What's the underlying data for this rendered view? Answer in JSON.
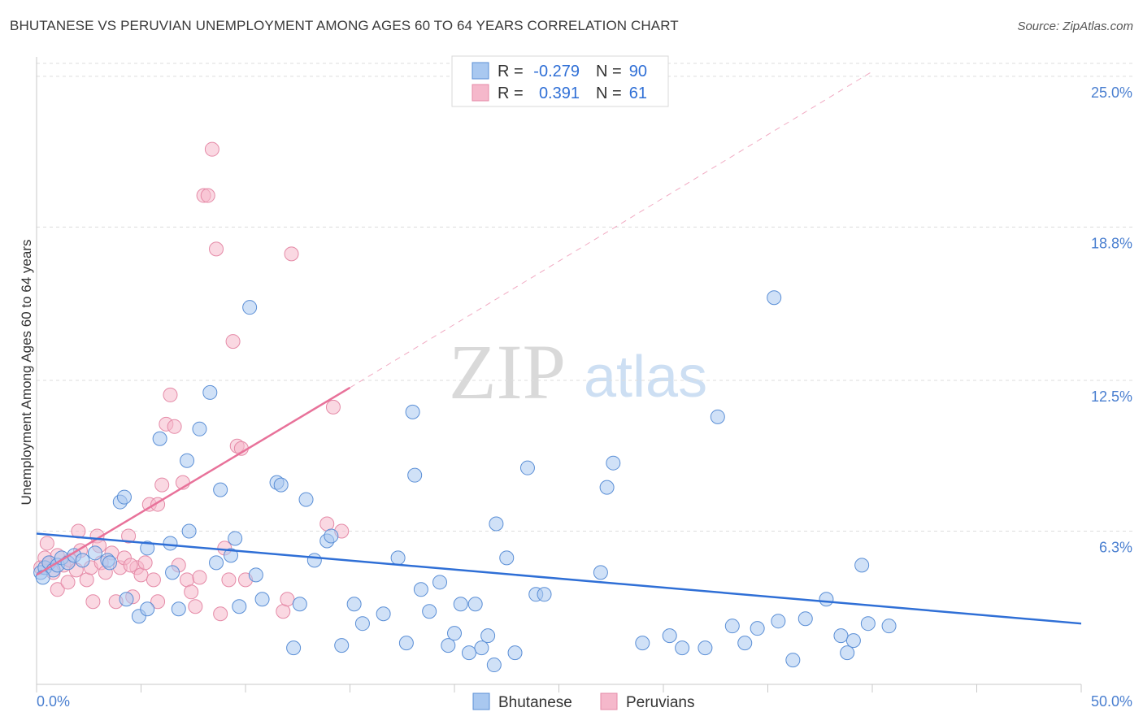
{
  "title": "BHUTANESE VS PERUVIAN UNEMPLOYMENT AMONG AGES 60 TO 64 YEARS CORRELATION CHART",
  "source": "Source: ZipAtlas.com",
  "watermark": {
    "zip": "ZIP",
    "atlas": "atlas"
  },
  "colors": {
    "bhutanese_fill": "#a9c8f0",
    "bhutanese_stroke": "#5b8fd6",
    "bhutanese_line": "#2f6fd6",
    "peruvian_fill": "#f5b8cb",
    "peruvian_stroke": "#e58aa7",
    "peruvian_line": "#e8729a",
    "grid": "#dddddd",
    "tick_label": "#4a7fd0"
  },
  "legend": {
    "bhutanese": {
      "r_label": "R =",
      "r_value": "-0.279",
      "n_label": "N =",
      "n_value": "90"
    },
    "peruvian": {
      "r_label": "R =",
      "r_value": "0.391",
      "n_label": "N =",
      "n_value": "61"
    }
  },
  "bottom_legend": [
    "Bhutanese",
    "Peruvians"
  ],
  "chart_data": {
    "type": "scatter",
    "title": "BHUTANESE VS PERUVIAN UNEMPLOYMENT AMONG AGES 60 TO 64 YEARS CORRELATION CHART",
    "xlabel": "",
    "ylabel": "Unemployment Among Ages 60 to 64 years",
    "xlim": [
      0,
      50
    ],
    "ylim": [
      0,
      26.2
    ],
    "x_tick_labels": [
      "0.0%",
      "50.0%"
    ],
    "y_ticks": [
      6.3,
      12.5,
      18.8,
      25.0
    ],
    "y_tick_labels": [
      "6.3%",
      "12.5%",
      "18.8%",
      "25.0%"
    ],
    "grid": true,
    "legend_position": "top-center",
    "series": [
      {
        "name": "Bhutanese",
        "r": -0.279,
        "n": 90,
        "trend": {
          "x": [
            0,
            50
          ],
          "y": [
            6.2,
            2.5
          ],
          "style": "solid"
        },
        "points": [
          [
            0.2,
            4.6
          ],
          [
            0.4,
            4.8
          ],
          [
            0.6,
            5.0
          ],
          [
            0.8,
            4.7
          ],
          [
            1.0,
            4.9
          ],
          [
            1.2,
            5.2
          ],
          [
            1.5,
            5.0
          ],
          [
            1.8,
            5.3
          ],
          [
            2.2,
            5.1
          ],
          [
            2.8,
            5.4
          ],
          [
            3.4,
            5.1
          ],
          [
            3.5,
            5.0
          ],
          [
            4.0,
            7.5
          ],
          [
            4.2,
            7.7
          ],
          [
            4.3,
            3.5
          ],
          [
            4.9,
            2.8
          ],
          [
            5.3,
            5.6
          ],
          [
            5.3,
            3.1
          ],
          [
            5.9,
            10.1
          ],
          [
            6.4,
            5.8
          ],
          [
            6.5,
            4.6
          ],
          [
            6.8,
            3.1
          ],
          [
            7.2,
            9.2
          ],
          [
            7.3,
            6.3
          ],
          [
            7.8,
            10.5
          ],
          [
            8.3,
            12.0
          ],
          [
            8.6,
            5.0
          ],
          [
            8.8,
            8.0
          ],
          [
            9.3,
            5.3
          ],
          [
            9.5,
            6.0
          ],
          [
            9.7,
            3.2
          ],
          [
            10.2,
            15.5
          ],
          [
            10.5,
            4.5
          ],
          [
            10.8,
            3.5
          ],
          [
            11.5,
            8.3
          ],
          [
            11.7,
            8.2
          ],
          [
            12.3,
            1.5
          ],
          [
            12.6,
            3.3
          ],
          [
            12.9,
            7.6
          ],
          [
            13.3,
            5.1
          ],
          [
            13.9,
            5.9
          ],
          [
            14.1,
            6.1
          ],
          [
            14.6,
            1.6
          ],
          [
            15.2,
            3.3
          ],
          [
            15.6,
            2.5
          ],
          [
            16.6,
            2.9
          ],
          [
            17.3,
            5.2
          ],
          [
            17.7,
            1.7
          ],
          [
            18.0,
            11.2
          ],
          [
            18.1,
            8.6
          ],
          [
            18.4,
            3.9
          ],
          [
            18.8,
            3.0
          ],
          [
            19.3,
            4.2
          ],
          [
            19.7,
            1.6
          ],
          [
            20.0,
            2.1
          ],
          [
            20.3,
            3.3
          ],
          [
            20.7,
            1.3
          ],
          [
            21.0,
            3.3
          ],
          [
            21.3,
            1.5
          ],
          [
            21.6,
            2.0
          ],
          [
            21.9,
            0.8
          ],
          [
            22.0,
            6.6
          ],
          [
            22.5,
            5.2
          ],
          [
            22.9,
            1.3
          ],
          [
            23.5,
            8.9
          ],
          [
            23.9,
            3.7
          ],
          [
            24.3,
            3.7
          ],
          [
            27.0,
            4.6
          ],
          [
            27.3,
            8.1
          ],
          [
            27.6,
            9.1
          ],
          [
            29.0,
            1.7
          ],
          [
            30.3,
            2.0
          ],
          [
            30.9,
            1.5
          ],
          [
            32.0,
            1.5
          ],
          [
            32.6,
            11.0
          ],
          [
            33.3,
            2.4
          ],
          [
            33.9,
            1.7
          ],
          [
            34.5,
            2.3
          ],
          [
            35.3,
            15.9
          ],
          [
            35.5,
            2.6
          ],
          [
            36.2,
            1.0
          ],
          [
            36.8,
            2.7
          ],
          [
            37.8,
            3.5
          ],
          [
            38.5,
            2.0
          ],
          [
            38.8,
            1.3
          ],
          [
            39.1,
            1.8
          ],
          [
            39.5,
            4.9
          ],
          [
            39.8,
            2.5
          ],
          [
            40.8,
            2.4
          ],
          [
            0.3,
            4.4
          ]
        ]
      },
      {
        "name": "Peruvians",
        "r": 0.391,
        "n": 61,
        "trend": {
          "x": [
            0,
            15
          ],
          "y": [
            4.5,
            12.2
          ],
          "style": "solid",
          "extended": {
            "x": [
              15,
              40
            ],
            "y": [
              12.2,
              25.2
            ],
            "style": "dashed"
          }
        },
        "points": [
          [
            0.2,
            4.8
          ],
          [
            0.4,
            5.2
          ],
          [
            0.6,
            5.0
          ],
          [
            0.8,
            4.6
          ],
          [
            1.0,
            5.3
          ],
          [
            1.3,
            4.9
          ],
          [
            1.6,
            5.1
          ],
          [
            1.9,
            4.7
          ],
          [
            2.1,
            5.5
          ],
          [
            2.4,
            4.3
          ],
          [
            2.6,
            4.8
          ],
          [
            2.9,
            6.1
          ],
          [
            3.1,
            5.0
          ],
          [
            3.3,
            4.6
          ],
          [
            3.6,
            5.4
          ],
          [
            3.8,
            3.4
          ],
          [
            4.0,
            4.8
          ],
          [
            4.2,
            5.2
          ],
          [
            4.4,
            6.1
          ],
          [
            4.6,
            3.6
          ],
          [
            4.8,
            4.8
          ],
          [
            5.0,
            4.5
          ],
          [
            5.2,
            5.0
          ],
          [
            5.4,
            7.4
          ],
          [
            5.6,
            4.3
          ],
          [
            5.8,
            3.4
          ],
          [
            6.0,
            8.2
          ],
          [
            6.2,
            10.7
          ],
          [
            6.4,
            11.9
          ],
          [
            6.6,
            10.6
          ],
          [
            6.8,
            4.9
          ],
          [
            7.0,
            8.3
          ],
          [
            7.2,
            4.3
          ],
          [
            7.4,
            3.8
          ],
          [
            7.6,
            3.2
          ],
          [
            7.8,
            4.4
          ],
          [
            8.0,
            20.1
          ],
          [
            8.2,
            20.1
          ],
          [
            8.4,
            22.0
          ],
          [
            8.6,
            17.9
          ],
          [
            8.8,
            2.9
          ],
          [
            9.0,
            5.6
          ],
          [
            9.2,
            4.3
          ],
          [
            9.4,
            14.1
          ],
          [
            9.6,
            9.8
          ],
          [
            9.8,
            9.7
          ],
          [
            10.0,
            4.3
          ],
          [
            11.8,
            3.0
          ],
          [
            12.0,
            3.5
          ],
          [
            12.2,
            17.7
          ],
          [
            13.9,
            6.6
          ],
          [
            14.2,
            11.4
          ],
          [
            14.6,
            6.3
          ],
          [
            1.0,
            3.9
          ],
          [
            2.0,
            6.3
          ],
          [
            3.0,
            5.7
          ],
          [
            1.5,
            4.2
          ],
          [
            2.7,
            3.4
          ],
          [
            4.5,
            4.9
          ],
          [
            5.8,
            7.4
          ],
          [
            0.5,
            5.8
          ]
        ]
      }
    ]
  }
}
